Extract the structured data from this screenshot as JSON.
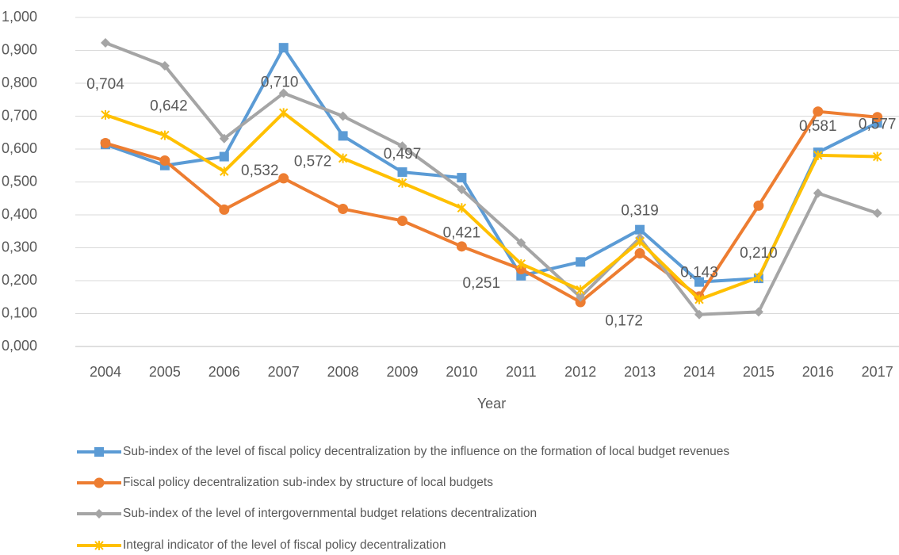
{
  "chart_data": {
    "type": "line",
    "x_label": "Year",
    "categories": [
      "2004",
      "2005",
      "2006",
      "2007",
      "2008",
      "2009",
      "2010",
      "2011",
      "2012",
      "2013",
      "2014",
      "2015",
      "2016",
      "2017"
    ],
    "ylim": [
      0,
      1
    ],
    "yticks": [
      {
        "value": 0,
        "label": "0,000"
      },
      {
        "value": 0.1,
        "label": "0,100"
      },
      {
        "value": 0.2,
        "label": "0,200"
      },
      {
        "value": 0.3,
        "label": "0,300"
      },
      {
        "value": 0.4,
        "label": "0,400"
      },
      {
        "value": 0.5,
        "label": "0,500"
      },
      {
        "value": 0.6,
        "label": "0,600"
      },
      {
        "value": 0.7,
        "label": "0,700"
      },
      {
        "value": 0.8,
        "label": "0,800"
      },
      {
        "value": 0.9,
        "label": "0,900"
      },
      {
        "value": 1,
        "label": "1,000"
      }
    ],
    "grid": true,
    "legend": "bottom",
    "series": [
      {
        "name": "Sub-index of the level of fiscal policy decentralization by the influence on the formation of local budget revenues",
        "color": "#5b9bd5",
        "marker": "square",
        "values": [
          0.614,
          0.55,
          0.577,
          0.908,
          0.64,
          0.53,
          0.513,
          0.215,
          0.257,
          0.355,
          0.196,
          0.207,
          0.59,
          0.68
        ]
      },
      {
        "name": "Fiscal policy decentralization sub-index by structure of local budgets",
        "color": "#ed7d31",
        "marker": "circle",
        "values": [
          0.618,
          0.565,
          0.416,
          0.511,
          0.418,
          0.382,
          0.304,
          0.235,
          0.135,
          0.283,
          0.152,
          0.428,
          0.714,
          0.697
        ]
      },
      {
        "name": "Sub-index of the level of intergovernmental budget relations decentralization",
        "color": "#a5a5a5",
        "marker": "diamond",
        "values": [
          0.923,
          0.853,
          0.632,
          0.77,
          0.7,
          0.609,
          0.477,
          0.315,
          0.15,
          0.33,
          0.097,
          0.105,
          0.466,
          0.405
        ]
      },
      {
        "name": "Integral indicator of the level of fiscal policy decentralization",
        "color": "#ffc000",
        "marker": "star",
        "values": [
          0.704,
          0.642,
          0.532,
          0.71,
          0.572,
          0.497,
          0.421,
          0.251,
          0.172,
          0.319,
          0.143,
          0.21,
          0.581,
          0.577
        ],
        "value_labels": [
          "0,704",
          "0,642",
          "0,532",
          "0,710",
          "0,572",
          "0,497",
          "0,421",
          "0,251",
          "0,172",
          "0,319",
          "0,143",
          "0,210",
          "0,581",
          "0,577"
        ]
      }
    ]
  }
}
